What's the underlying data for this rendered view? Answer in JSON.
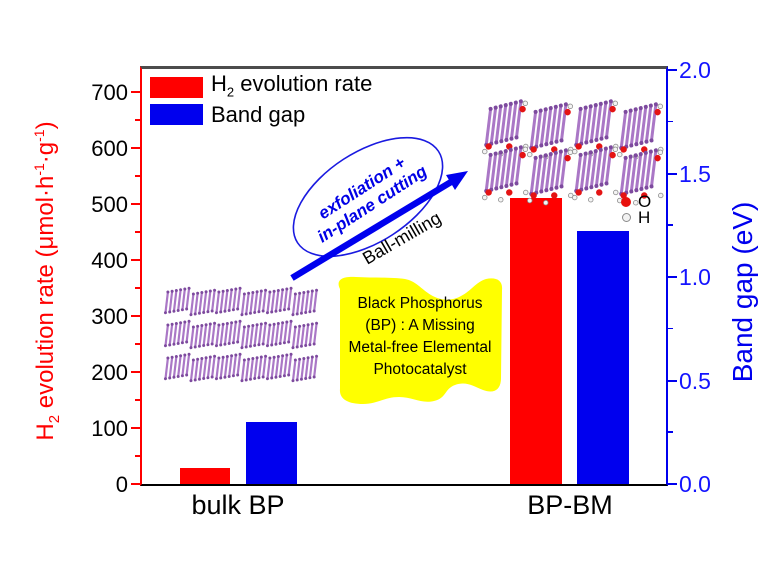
{
  "chart_data": {
    "type": "bar",
    "title": "",
    "categories": [
      "bulk BP",
      "BP-BM"
    ],
    "series": [
      {
        "name": "H2 evolution rate",
        "axis": "left",
        "color": "#ff0000",
        "values": [
          28,
          510
        ]
      },
      {
        "name": "Band gap",
        "axis": "right",
        "color": "#0000ee",
        "values": [
          0.3,
          1.22
        ]
      }
    ],
    "y_left": {
      "label": "H2 evolution rate (umol.h-1.g-1)",
      "label_html": "H<sub>2</sub> evolution rate (μmol·h<sup>-1</sup>·g<sup>-1</sup>)",
      "range": [
        0,
        746
      ],
      "major_ticks": [
        "0",
        "100",
        "200",
        "300",
        "400",
        "500",
        "600",
        "700"
      ],
      "minor_ticks": [
        50,
        150,
        250,
        350,
        450,
        550,
        650
      ],
      "axis_color": "#ff0000",
      "tick_label_color": "#000000"
    },
    "y_right": {
      "label": "Band gap (eV)",
      "range": [
        0,
        2.0
      ],
      "major_ticks": [
        "0.0",
        "0.5",
        "1.0",
        "1.5",
        "2.0"
      ],
      "minor_ticks": [
        0.25,
        0.75,
        1.25,
        1.75
      ],
      "axis_color": "#0000ee",
      "tick_label_color": "#1414ff"
    },
    "legend": {
      "position": "top-left",
      "items": [
        {
          "label": "H2 evolution rate",
          "label_html": "H<sub>2</sub> evolution rate",
          "color": "#ff0000"
        },
        {
          "label": "Band gap",
          "label_html": "Band gap",
          "color": "#0000ee"
        }
      ]
    },
    "grid": false
  },
  "annotations": {
    "ellipse_label": {
      "line1": "exfoliation +",
      "line2": "in-plane cutting",
      "color": "#0000e6"
    },
    "arrow_label": "Ball-milling",
    "arrow_color": "#0000ee",
    "callout": {
      "bg": "#ffff00",
      "lines": [
        "Black Phosphorus",
        "(BP) : A Missing",
        "Metal-free Elemental",
        "Photocatalyst"
      ]
    },
    "atom_legend": {
      "o_label": "O",
      "h_label": "H",
      "o_color": "#e8100c",
      "h_color": "#f2f2f2"
    },
    "crystal_color": "#aa77c6"
  }
}
